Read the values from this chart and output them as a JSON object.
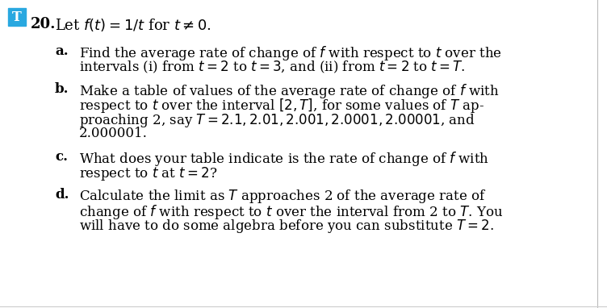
{
  "background_color": "#ffffff",
  "box_color": "#29a8e0",
  "box_text": "T",
  "problem_number": "20.",
  "header_text": "Let $f(t) = 1/t$ for $t \\neq 0$.",
  "parts": [
    {
      "label": "a.",
      "lines": [
        "Find the average rate of change of $f$ with respect to $t$ over the",
        "intervals (i) from $t = 2$ to $t = 3$, and (ii) from $t = 2$ to $t = T$."
      ]
    },
    {
      "label": "b.",
      "lines": [
        "Make a table of values of the average rate of change of $f$ with",
        "respect to $t$ over the interval $[2, T]$, for some values of $T$ ap-",
        "proaching 2, say $T = 2.1, 2.01, 2.001, 2.0001, 2.00001$, and",
        "2.000001."
      ]
    },
    {
      "label": "c.",
      "lines": [
        "What does your table indicate is the rate of change of $f$ with",
        "respect to $t$ at $t = 2$?"
      ]
    },
    {
      "label": "d.",
      "lines": [
        "Calculate the limit as $T$ approaches 2 of the average rate of",
        "change of $f$ with respect to $t$ over the interval from 2 to $T$. You",
        "will have to do some algebra before you can substitute $T = 2$."
      ]
    }
  ],
  "font_size_header": 13.0,
  "font_size_body": 12.0,
  "font_size_label": 12.0,
  "font_size_number": 13.0,
  "font_size_box": 11.5,
  "fig_width": 7.52,
  "fig_height": 3.82,
  "dpi": 100
}
